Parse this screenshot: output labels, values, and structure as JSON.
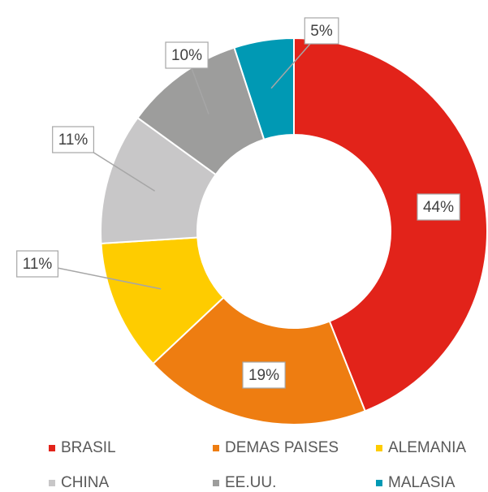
{
  "chart_data": {
    "type": "donut",
    "categories": [
      "BRASIL",
      "DEMAS PAISES",
      "ALEMANIA",
      "CHINA",
      "EE.UU.",
      "MALASIA"
    ],
    "values": [
      44,
      19,
      11,
      11,
      10,
      5
    ],
    "value_labels": [
      "44%",
      "19%",
      "11%",
      "11%",
      "10%",
      "5%"
    ],
    "colors": [
      "#e2231a",
      "#ee7d11",
      "#fecc00",
      "#c8c7c8",
      "#9d9d9c",
      "#0099b4"
    ],
    "legend": "bottom"
  }
}
